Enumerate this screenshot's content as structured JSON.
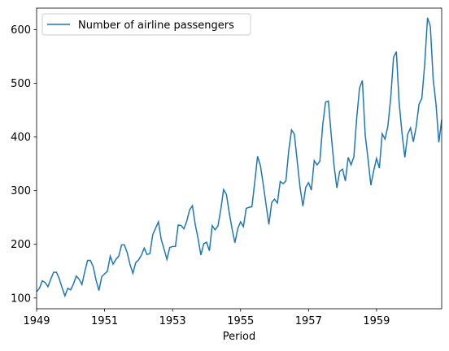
{
  "chart_data": {
    "type": "line",
    "title": "",
    "xlabel": "Period",
    "ylabel": "",
    "x_start": "1949-01",
    "x_end": "1960-12",
    "frequency": "monthly",
    "xlim": [
      "1949-01",
      "1960-12"
    ],
    "ylim": [
      80,
      640
    ],
    "x_ticks": [
      "1949",
      "1951",
      "1953",
      "1955",
      "1957",
      "1959"
    ],
    "y_ticks": [
      100,
      200,
      300,
      400,
      500,
      600
    ],
    "grid": false,
    "legend_position": "top-left",
    "series": [
      {
        "name": "Number of airline passengers",
        "color": "#1f77b4",
        "values": [
          112,
          118,
          132,
          129,
          121,
          135,
          148,
          148,
          136,
          119,
          104,
          118,
          115,
          126,
          141,
          135,
          125,
          149,
          170,
          170,
          158,
          133,
          114,
          140,
          145,
          150,
          178,
          163,
          172,
          178,
          199,
          199,
          184,
          162,
          146,
          166,
          171,
          180,
          193,
          181,
          183,
          218,
          230,
          242,
          209,
          191,
          172,
          194,
          196,
          196,
          236,
          235,
          229,
          243,
          264,
          272,
          237,
          211,
          180,
          201,
          204,
          188,
          235,
          227,
          234,
          264,
          302,
          293,
          259,
          229,
          203,
          229,
          242,
          233,
          267,
          269,
          270,
          315,
          364,
          347,
          312,
          274,
          237,
          278,
          284,
          277,
          317,
          313,
          318,
          374,
          413,
          405,
          355,
          306,
          271,
          306,
          315,
          301,
          356,
          348,
          355,
          422,
          465,
          467,
          404,
          347,
          305,
          336,
          340,
          318,
          362,
          348,
          363,
          435,
          491,
          505,
          404,
          359,
          310,
          337,
          360,
          342,
          406,
          396,
          420,
          472,
          548,
          559,
          463,
          407,
          362,
          405,
          417,
          391,
          419,
          461,
          472,
          535,
          622,
          606,
          508,
          461,
          390,
          432
        ]
      }
    ]
  }
}
